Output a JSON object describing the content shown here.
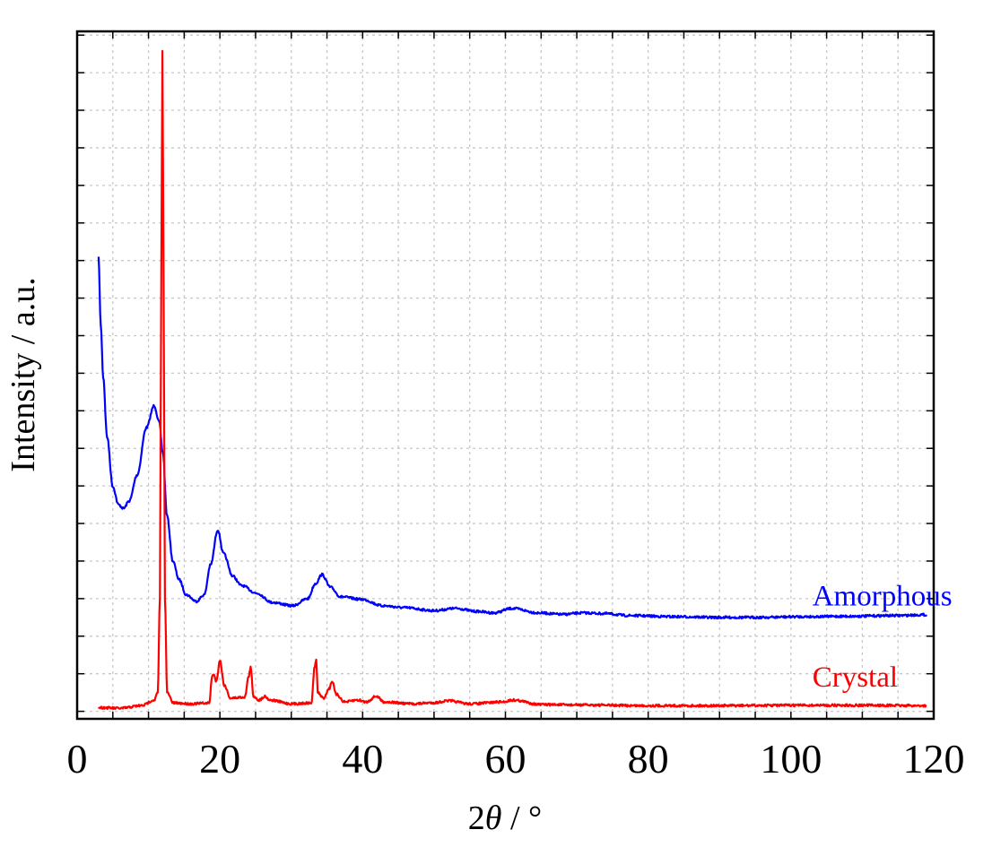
{
  "chart_data": {
    "type": "line",
    "title": "",
    "xlabel_prefix": "2",
    "xlabel_symbol": "θ",
    "xlabel_suffix": " / °",
    "ylabel": "Intensity / a.u.",
    "xlim": [
      0,
      120
    ],
    "ylim": [
      -0.2,
      18.1
    ],
    "x_ticks": [
      0,
      20,
      40,
      60,
      80,
      100,
      120
    ],
    "x_tick_labels": [
      "0",
      "20",
      "40",
      "60",
      "80",
      "100",
      "120"
    ],
    "x_minor_step": 5,
    "y_tick_step": 1,
    "y_tick_labels_shown": false,
    "grid": true,
    "legend": "none (inline labels)",
    "series": [
      {
        "name": "Amorphous",
        "color": "#0000ff",
        "points": [
          [
            3.0,
            12.07
          ],
          [
            3.3,
            10.3
          ],
          [
            3.65,
            8.9
          ],
          [
            4.2,
            7.3
          ],
          [
            5.0,
            5.98
          ],
          [
            5.8,
            5.5
          ],
          [
            6.5,
            5.4
          ],
          [
            7.3,
            5.6
          ],
          [
            8.4,
            6.29
          ],
          [
            9.7,
            7.55
          ],
          [
            10.8,
            8.14
          ],
          [
            11.5,
            7.7
          ],
          [
            12.0,
            6.9
          ],
          [
            12.6,
            5.2
          ],
          [
            13.4,
            4.0
          ],
          [
            14.3,
            3.5
          ],
          [
            15.3,
            3.1
          ],
          [
            16.7,
            2.93
          ],
          [
            17.8,
            3.1
          ],
          [
            18.7,
            3.9
          ],
          [
            19.7,
            4.83
          ],
          [
            20.5,
            4.2
          ],
          [
            21.8,
            3.6
          ],
          [
            23.0,
            3.35
          ],
          [
            25.2,
            3.14
          ],
          [
            27.3,
            2.9
          ],
          [
            30.2,
            2.81
          ],
          [
            32.3,
            3.0
          ],
          [
            33.4,
            3.4
          ],
          [
            34.3,
            3.64
          ],
          [
            35.5,
            3.3
          ],
          [
            36.9,
            3.05
          ],
          [
            39.9,
            2.98
          ],
          [
            42.8,
            2.81
          ],
          [
            45.8,
            2.76
          ],
          [
            50.0,
            2.68
          ],
          [
            53.0,
            2.74
          ],
          [
            56.0,
            2.66
          ],
          [
            58.4,
            2.62
          ],
          [
            60.9,
            2.74
          ],
          [
            64.7,
            2.62
          ],
          [
            68.0,
            2.58
          ],
          [
            70.9,
            2.62
          ],
          [
            74.0,
            2.6
          ],
          [
            77.2,
            2.55
          ],
          [
            83.5,
            2.52
          ],
          [
            89.8,
            2.5
          ],
          [
            95.0,
            2.5
          ],
          [
            102.3,
            2.52
          ],
          [
            108.0,
            2.53
          ],
          [
            114.9,
            2.55
          ],
          [
            119.0,
            2.57
          ]
        ]
      },
      {
        "name": "Crystal",
        "color": "#ff0000",
        "points": [
          [
            3.0,
            0.1
          ],
          [
            6.0,
            0.08
          ],
          [
            9.0,
            0.15
          ],
          [
            10.8,
            0.3
          ],
          [
            11.3,
            0.5
          ],
          [
            11.6,
            3.0
          ],
          [
            11.8,
            12.0
          ],
          [
            11.95,
            17.6
          ],
          [
            12.1,
            12.0
          ],
          [
            12.3,
            3.0
          ],
          [
            12.6,
            0.5
          ],
          [
            13.5,
            0.22
          ],
          [
            16.0,
            0.2
          ],
          [
            18.5,
            0.22
          ],
          [
            18.9,
            0.9
          ],
          [
            19.1,
            1.0
          ],
          [
            19.5,
            0.8
          ],
          [
            20.0,
            1.36
          ],
          [
            20.6,
            0.7
          ],
          [
            21.5,
            0.35
          ],
          [
            23.5,
            0.38
          ],
          [
            24.0,
            0.9
          ],
          [
            24.3,
            1.17
          ],
          [
            24.7,
            0.4
          ],
          [
            25.5,
            0.3
          ],
          [
            26.3,
            0.4
          ],
          [
            27.0,
            0.3
          ],
          [
            30.0,
            0.2
          ],
          [
            32.8,
            0.22
          ],
          [
            33.3,
            1.2
          ],
          [
            33.5,
            1.38
          ],
          [
            33.7,
            0.5
          ],
          [
            34.5,
            0.35
          ],
          [
            35.3,
            0.6
          ],
          [
            35.7,
            0.8
          ],
          [
            36.3,
            0.45
          ],
          [
            37.5,
            0.25
          ],
          [
            39.3,
            0.3
          ],
          [
            40.5,
            0.25
          ],
          [
            41.9,
            0.4
          ],
          [
            43.0,
            0.25
          ],
          [
            47.0,
            0.2
          ],
          [
            50.0,
            0.23
          ],
          [
            52.0,
            0.28
          ],
          [
            55.0,
            0.2
          ],
          [
            59.6,
            0.25
          ],
          [
            61.0,
            0.3
          ],
          [
            65.0,
            0.18
          ],
          [
            70.0,
            0.17
          ],
          [
            80.0,
            0.15
          ],
          [
            90.0,
            0.15
          ],
          [
            100.0,
            0.16
          ],
          [
            110.0,
            0.16
          ],
          [
            119.0,
            0.15
          ]
        ]
      }
    ],
    "annotations": [
      {
        "text": "Amorphous",
        "color": "#0000ff",
        "x": 103,
        "y": 3.1
      },
      {
        "text": "Crystal",
        "color": "#ff0000",
        "x": 103,
        "y": 0.95
      }
    ]
  }
}
